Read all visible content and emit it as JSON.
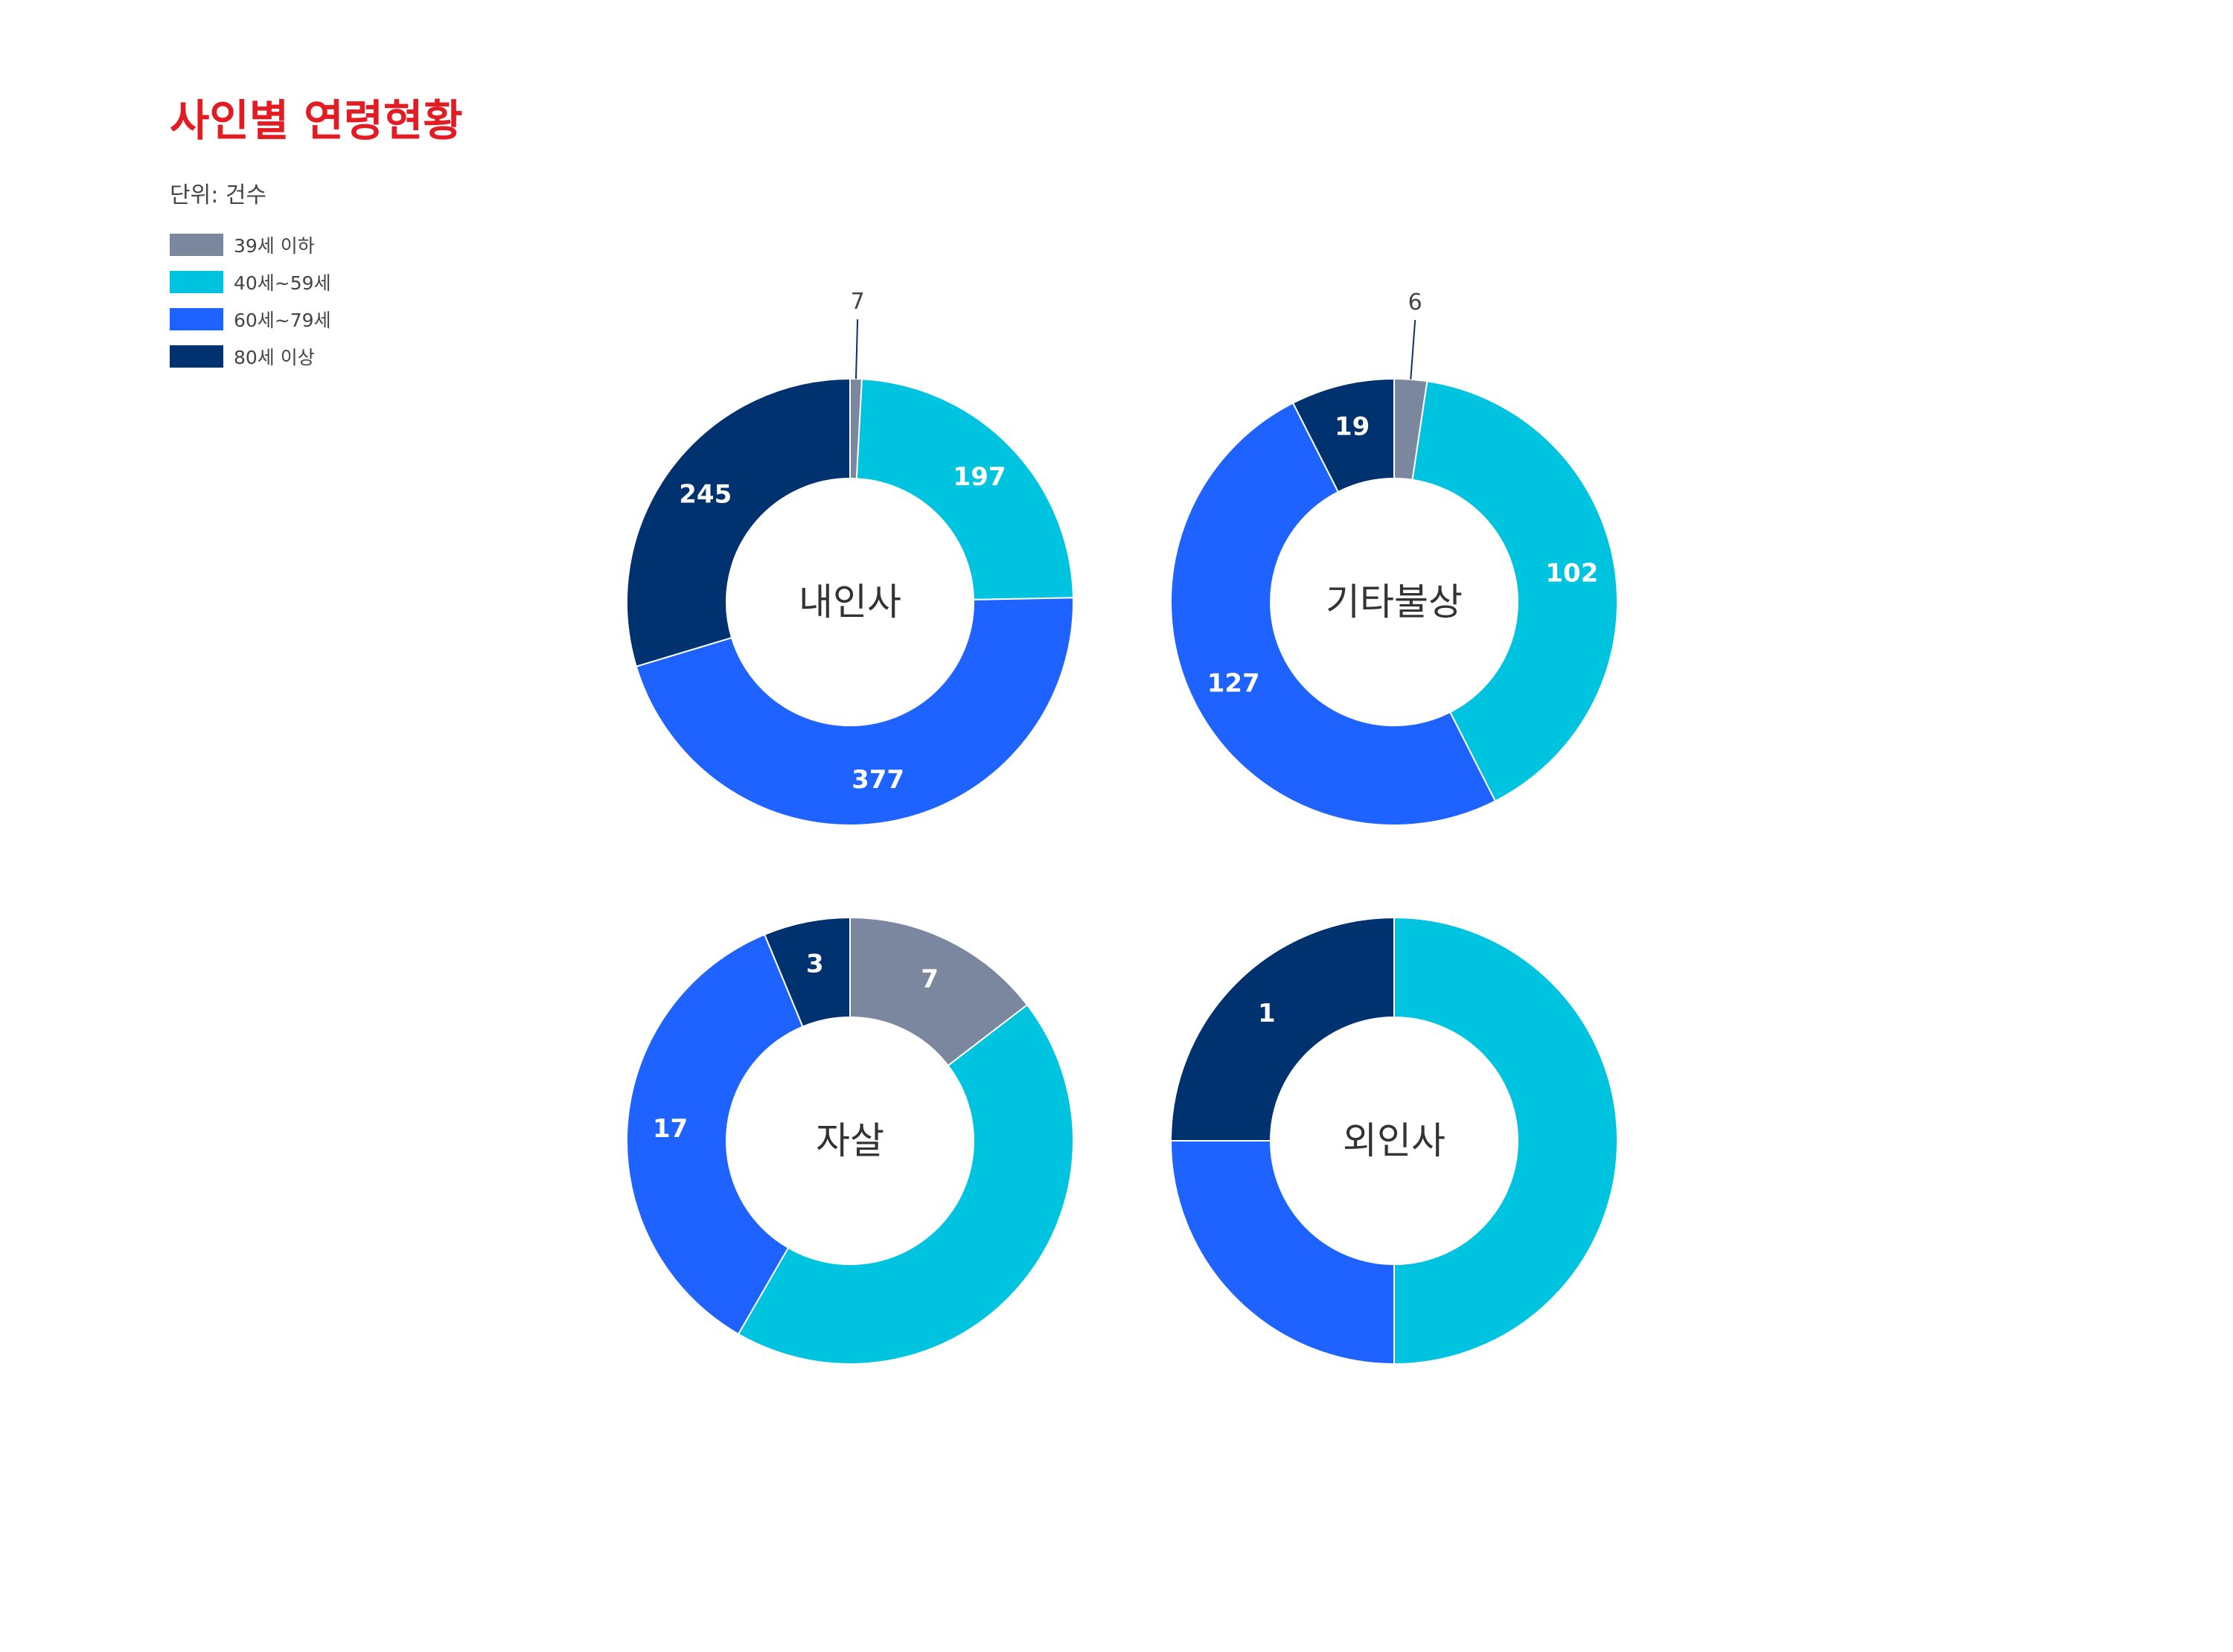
{
  "header": {
    "title": "사인별 연령현황",
    "unit": "단위: 건수"
  },
  "legend": [
    {
      "label": "39세 이하",
      "color": "#7b879f"
    },
    {
      "label": "40세~59세",
      "color": "#00c4df"
    },
    {
      "label": "60세~79세",
      "color": "#1e62ff"
    },
    {
      "label": "80세 이상",
      "color": "#003270"
    }
  ],
  "chart_data": [
    {
      "type": "pie",
      "title": "내인사",
      "categories": [
        "39세 이하",
        "40세~59세",
        "60세~79세",
        "80세 이상"
      ],
      "values": [
        7,
        197,
        377,
        245
      ],
      "labels": [
        "7",
        "197",
        "377",
        "245"
      ]
    },
    {
      "type": "pie",
      "title": "기타불상",
      "categories": [
        "39세 이하",
        "40세~59세",
        "60세~79세",
        "80세 이상"
      ],
      "values": [
        6,
        102,
        127,
        19
      ],
      "labels": [
        "6",
        "102",
        "127",
        "19"
      ]
    },
    {
      "type": "pie",
      "title": "자살",
      "categories": [
        "39세 이하",
        "40세~59세",
        "60세~79세",
        "80세 이상"
      ],
      "values": [
        7,
        21,
        17,
        3
      ],
      "labels": [
        "7",
        "",
        "17",
        "3"
      ]
    },
    {
      "type": "pie",
      "title": "외인사",
      "categories": [
        "39세 이하",
        "40세~59세",
        "60세~79세",
        "80세 이상"
      ],
      "values": [
        0,
        2,
        1,
        1
      ],
      "labels": [
        "",
        "",
        "",
        "1"
      ]
    }
  ]
}
